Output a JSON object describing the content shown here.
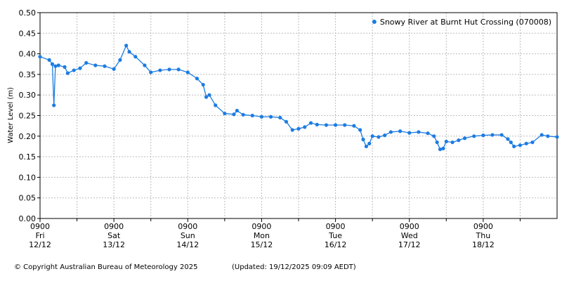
{
  "chart_data": {
    "type": "line",
    "y_label": "Water Level (m)",
    "legend": "upper right",
    "grid": true,
    "series": [
      {
        "name": "Snowy River at Burnt Hut Crossing (070008)",
        "color": "#1c7ce2",
        "x": [
          "12/12 09:00",
          "12/12 12:00",
          "12/12 13:00",
          "12/12 13:30",
          "12/12 14:00",
          "12/12 15:00",
          "12/12 17:00",
          "12/12 18:00",
          "12/12 20:00",
          "12/12 22:00",
          "13/12 00:00",
          "13/12 03:00",
          "13/12 06:00",
          "13/12 09:00",
          "13/12 11:00",
          "13/12 13:00",
          "13/12 14:00",
          "13/12 16:00",
          "13/12 19:00",
          "13/12 21:00",
          "14/12 00:00",
          "14/12 03:00",
          "14/12 06:00",
          "14/12 09:00",
          "14/12 12:00",
          "14/12 14:00",
          "14/12 15:00",
          "14/12 16:00",
          "14/12 18:00",
          "14/12 21:00",
          "15/12 00:00",
          "15/12 01:00",
          "15/12 03:00",
          "15/12 06:00",
          "15/12 09:00",
          "15/12 12:00",
          "15/12 15:00",
          "15/12 17:00",
          "15/12 19:00",
          "15/12 21:00",
          "15/12 23:00",
          "16/12 01:00",
          "16/12 03:00",
          "16/12 06:00",
          "16/12 09:00",
          "16/12 12:00",
          "16/12 15:00",
          "16/12 17:00",
          "16/12 18:00",
          "16/12 19:00",
          "16/12 20:00",
          "16/12 21:00",
          "16/12 23:00",
          "17/12 01:00",
          "17/12 03:00",
          "17/12 06:00",
          "17/12 09:00",
          "17/12 12:00",
          "17/12 15:00",
          "17/12 17:00",
          "17/12 18:00",
          "17/12 19:00",
          "17/12 20:00",
          "17/12 21:00",
          "17/12 23:00",
          "18/12 01:00",
          "18/12 03:00",
          "18/12 06:00",
          "18/12 09:00",
          "18/12 12:00",
          "18/12 15:00",
          "18/12 17:00",
          "18/12 18:00",
          "18/12 19:00",
          "18/12 21:00",
          "18/12 23:00",
          "19/12 01:00",
          "19/12 04:00",
          "19/12 06:00",
          "19/12 09:00"
        ],
        "values": [
          0.393,
          0.385,
          0.375,
          0.275,
          0.37,
          0.372,
          0.368,
          0.353,
          0.36,
          0.365,
          0.378,
          0.372,
          0.37,
          0.363,
          0.385,
          0.42,
          0.405,
          0.393,
          0.372,
          0.355,
          0.36,
          0.362,
          0.362,
          0.355,
          0.34,
          0.325,
          0.295,
          0.3,
          0.275,
          0.255,
          0.253,
          0.262,
          0.252,
          0.25,
          0.247,
          0.247,
          0.245,
          0.235,
          0.215,
          0.218,
          0.222,
          0.232,
          0.228,
          0.227,
          0.227,
          0.227,
          0.225,
          0.215,
          0.192,
          0.175,
          0.182,
          0.2,
          0.198,
          0.202,
          0.21,
          0.212,
          0.208,
          0.21,
          0.207,
          0.2,
          0.185,
          0.168,
          0.17,
          0.187,
          0.185,
          0.19,
          0.195,
          0.2,
          0.202,
          0.203,
          0.203,
          0.193,
          0.185,
          0.175,
          0.178,
          0.182,
          0.185,
          0.203,
          0.2,
          0.198
        ]
      }
    ],
    "xlim": [
      "12/12 09:00",
      "19/12 09:00"
    ],
    "xticks": [
      {
        "value": "12/12 09:00",
        "label": [
          "0900",
          "Fri",
          "12/12"
        ]
      },
      {
        "value": "13/12 09:00",
        "label": [
          "0900",
          "Sat",
          "13/12"
        ]
      },
      {
        "value": "14/12 09:00",
        "label": [
          "0900",
          "Sun",
          "14/12"
        ]
      },
      {
        "value": "15/12 09:00",
        "label": [
          "0900",
          "Mon",
          "15/12"
        ]
      },
      {
        "value": "16/12 09:00",
        "label": [
          "0900",
          "Tue",
          "16/12"
        ]
      },
      {
        "value": "17/12 09:00",
        "label": [
          "0900",
          "Wed",
          "17/12"
        ]
      },
      {
        "value": "18/12 09:00",
        "label": [
          "0900",
          "Thu",
          "18/12"
        ]
      }
    ],
    "ylim": [
      0,
      0.5
    ],
    "yticks": [
      {
        "value": 0,
        "label": "0.00"
      },
      {
        "value": 0.05,
        "label": "0.05"
      },
      {
        "value": 0.1,
        "label": "0.10"
      },
      {
        "value": 0.15,
        "label": "0.15"
      },
      {
        "value": 0.2,
        "label": "0.20"
      },
      {
        "value": 0.25,
        "label": "0.25"
      },
      {
        "value": 0.3,
        "label": "0.30"
      },
      {
        "value": 0.35,
        "label": "0.35"
      },
      {
        "value": 0.4,
        "label": "0.40"
      },
      {
        "value": 0.45,
        "label": "0.45"
      },
      {
        "value": 0.5,
        "label": "0.50"
      }
    ],
    "copyright": "© Copyright Australian Bureau of Meteorology 2025",
    "updated": "(Updated: 19/12/2025 09:09 AEDT)"
  }
}
